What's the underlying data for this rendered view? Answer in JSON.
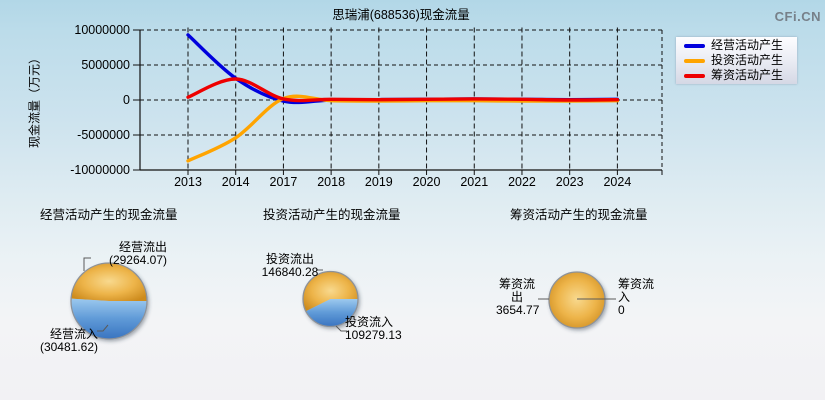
{
  "page": {
    "watermark": "CFi.CN"
  },
  "chart_data": [
    {
      "type": "line",
      "title": "思瑞浦(688536)现金流量",
      "xlabel": "",
      "ylabel": "现金流量（万元）",
      "x": [
        "2013",
        "2014",
        "2017",
        "2018",
        "2019",
        "2020",
        "2021",
        "2022",
        "2023",
        "2024"
      ],
      "ylim": [
        -10000000,
        10000000
      ],
      "ytick_labels": [
        "10000000",
        "5000000",
        "0",
        "-5000000",
        "-10000000"
      ],
      "grid": true,
      "grid_style": "dashed",
      "legend_position": "top-right",
      "series": [
        {
          "name": "经营活动产生",
          "color": "#0000dd",
          "values": [
            9300000,
            3100000,
            -150000,
            0,
            50000,
            100000,
            150000,
            100000,
            50000,
            100000
          ]
        },
        {
          "name": "投资活动产生",
          "color": "#ffa400",
          "values": [
            -8700000,
            -5400000,
            200000,
            -100000,
            -150000,
            -100000,
            -100000,
            -150000,
            -150000,
            -100000
          ]
        },
        {
          "name": "筹资活动产生",
          "color": "#ee0000",
          "values": [
            400000,
            3000000,
            150000,
            100000,
            50000,
            100000,
            150000,
            100000,
            0,
            50000
          ]
        }
      ]
    },
    {
      "type": "pie",
      "title": "经营活动产生的现金流量",
      "slices": [
        {
          "label": "经营流出",
          "value": 29264.07,
          "display": "(29264.07)",
          "tone": "gold",
          "color": "#e8a83c"
        },
        {
          "label": "经营流入",
          "value": 30481.62,
          "display": "(30481.62)",
          "tone": "blue",
          "color": "#4f8bd0"
        }
      ]
    },
    {
      "type": "pie",
      "title": "投资活动产生的现金流量",
      "slices": [
        {
          "label": "投资流出",
          "value": 146840.28,
          "display": "146840.28",
          "tone": "gold",
          "color": "#e8a83c"
        },
        {
          "label": "投资流入",
          "value": 109279.13,
          "display": "109279.13",
          "tone": "blue",
          "color": "#4f8bd0"
        }
      ]
    },
    {
      "type": "pie",
      "title": "筹资活动产生的现金流量",
      "slices": [
        {
          "label": "筹资流出",
          "value": 3654.77,
          "display": "3654.77",
          "tone": "gold",
          "color": "#e8a83c"
        },
        {
          "label": "筹资流入",
          "value": 0,
          "display": "0",
          "tone": "gold",
          "color": "#e8a83c"
        }
      ]
    }
  ]
}
